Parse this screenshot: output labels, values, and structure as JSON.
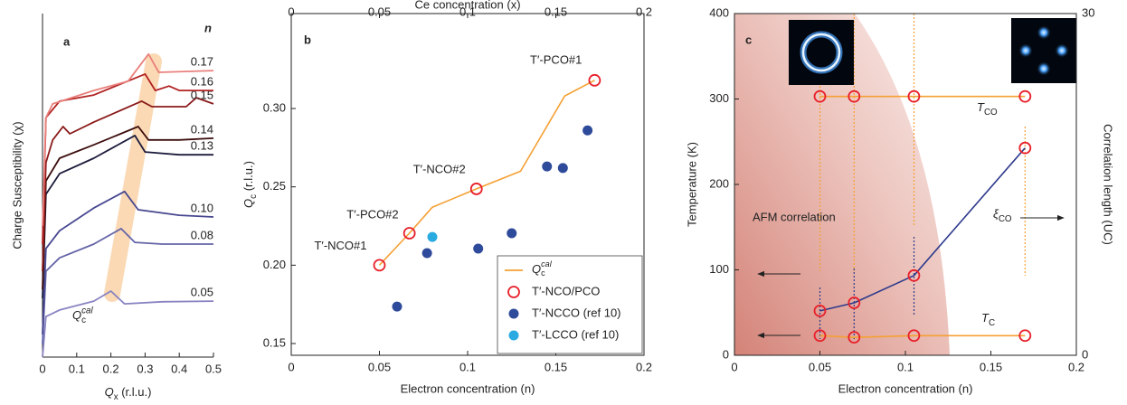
{
  "chart_data": [
    {
      "type": "line",
      "panel_label": "a",
      "xlabel": {
        "text": "Q",
        "sub": "x",
        "after": " (r.l.u.)"
      },
      "ylabel": "Charge Susceptibility (χ)",
      "legend_title": "n",
      "annotation": {
        "text": "Q",
        "sub": "c",
        "sup": "cal"
      },
      "xlim": [
        0,
        0.5
      ],
      "xticks": [
        0,
        0.1,
        0.2,
        0.3,
        0.4,
        0.5
      ],
      "ylim": [
        0,
        10
      ],
      "series": [
        {
          "name": "0.05",
          "color": "#8884c2",
          "x": [
            0,
            0.01,
            0.05,
            0.15,
            0.2,
            0.24,
            0.35,
            0.5
          ],
          "values": [
            0,
            1.18,
            1.37,
            1.63,
            1.92,
            1.55,
            1.61,
            1.63
          ]
        },
        {
          "name": "0.08",
          "color": "#6464a8",
          "x": [
            0,
            0.01,
            0.05,
            0.15,
            0.23,
            0.27,
            0.35,
            0.5
          ],
          "values": [
            0.39,
            2.5,
            2.89,
            3.29,
            3.74,
            3.34,
            3.29,
            3.29
          ]
        },
        {
          "name": "0.10",
          "color": "#474790",
          "x": [
            0,
            0.01,
            0.05,
            0.15,
            0.24,
            0.28,
            0.4,
            0.5
          ],
          "values": [
            0.66,
            3.16,
            3.68,
            4.34,
            4.82,
            4.29,
            4.13,
            4.08
          ]
        },
        {
          "name": "0.13",
          "color": "#1c1c3c",
          "x": [
            0,
            0.01,
            0.05,
            0.15,
            0.27,
            0.3,
            0.4,
            0.5
          ],
          "values": [
            1.71,
            4.74,
            5.34,
            5.79,
            6.45,
            5.97,
            5.89,
            5.89
          ]
        },
        {
          "name": "0.14",
          "color": "#3d0d0d",
          "x": [
            0,
            0.01,
            0.05,
            0.15,
            0.28,
            0.31,
            0.4,
            0.5
          ],
          "values": [
            1.97,
            5.13,
            5.79,
            6.18,
            6.71,
            6.32,
            6.32,
            6.37
          ]
        },
        {
          "name": "0.15",
          "color": "#8b1a1a",
          "x": [
            0,
            0.01,
            0.03,
            0.06,
            0.08,
            0.15,
            0.29,
            0.32,
            0.42,
            0.45,
            0.5
          ],
          "values": [
            2.5,
            5.66,
            6.32,
            6.71,
            6.5,
            6.84,
            7.45,
            7.29,
            7.29,
            7.55,
            7.37
          ]
        },
        {
          "name": "0.16",
          "color": "#b22222",
          "x": [
            0,
            0.01,
            0.05,
            0.15,
            0.3,
            0.33,
            0.37,
            0.4,
            0.5
          ],
          "values": [
            3.29,
            6.97,
            7.45,
            7.63,
            8.24,
            7.76,
            7.89,
            7.76,
            7.76
          ]
        },
        {
          "name": "0.17",
          "color": "#e9807c",
          "x": [
            0,
            0.01,
            0.03,
            0.15,
            0.25,
            0.31,
            0.34,
            0.5
          ],
          "values": [
            3.82,
            6.97,
            7.37,
            7.76,
            8.03,
            8.82,
            8.29,
            8.34
          ]
        }
      ]
    },
    {
      "type": "scatter",
      "panel_label": "b",
      "xlabel": "Electron concentration (n)",
      "x2label": "Ce concentration (x)",
      "ylabel": {
        "text": "Q",
        "sub": "c",
        "after": " (r.l.u.)"
      },
      "xlim": [
        0,
        0.2
      ],
      "xticks": [
        0,
        0.05,
        0.1,
        0.15,
        0.2
      ],
      "x2lim": [
        0,
        0.2
      ],
      "x2ticks": [
        0,
        0.05,
        0.1,
        0.15,
        0.2
      ],
      "ylim": [
        0.1425,
        0.3606
      ],
      "yticks": [
        {
          "value": 0.15,
          "label": "0.15"
        },
        {
          "value": 0.2,
          "label": "0.20"
        },
        {
          "value": 0.25,
          "label": "0.25"
        },
        {
          "value": 0.3,
          "label": "0.30"
        }
      ],
      "legend": "lower right",
      "series": [
        {
          "name": {
            "text": "Q",
            "sub": "c",
            "sup": "cal"
          },
          "color": "#f5a033",
          "marker": "none",
          "line": true,
          "x": [
            0.05,
            0.067,
            0.08,
            0.105,
            0.13,
            0.155,
            0.172
          ],
          "values": [
            0.2,
            0.2204,
            0.237,
            0.2487,
            0.26,
            0.308,
            0.318
          ]
        },
        {
          "name": "T′-NCO/PCO",
          "color": "#e8202a",
          "marker": "open",
          "line": false,
          "x": [
            0.05,
            0.067,
            0.105,
            0.172
          ],
          "values": [
            0.2,
            0.2204,
            0.2487,
            0.318
          ],
          "point_labels": [
            "T′-NCO#1",
            "T′-PCO#2",
            "T′-NCO#2",
            "T′-PCO#1"
          ]
        },
        {
          "name": "T′-NCCO (ref 10)",
          "color": "#2e4a9a",
          "marker": "filled",
          "line": false,
          "x": [
            0.06,
            0.077,
            0.106,
            0.125,
            0.145,
            0.154,
            0.168
          ],
          "values": [
            0.1736,
            0.2077,
            0.2106,
            0.2204,
            0.263,
            0.262,
            0.286
          ]
        },
        {
          "name": "T′-LCCO (ref 10)",
          "color": "#29abe2",
          "marker": "filled",
          "line": false,
          "x": [
            0.08
          ],
          "values": [
            0.218
          ]
        }
      ]
    },
    {
      "type": "line",
      "panel_label": "c",
      "xlabel": "Electron concentration (n)",
      "ylabel": "Temperature (K)",
      "y2label": "Correlation length (UC)",
      "region_label": "AFM correlation",
      "xlim": [
        0,
        0.2
      ],
      "xticks": [
        0,
        0.05,
        0.1,
        0.15,
        0.2
      ],
      "ylim": [
        0,
        400
      ],
      "yticks": [
        0,
        100,
        200,
        300,
        400
      ],
      "y2lim": [
        0,
        30
      ],
      "y2ticks": [
        0,
        30
      ],
      "series": [
        {
          "name": {
            "text": "T",
            "sub": "CO"
          },
          "color": "#f5a033",
          "marker": "open",
          "marker_color": "#e8202a",
          "line": true,
          "x": [
            0.05,
            0.07,
            0.105,
            0.17
          ],
          "values": [
            303,
            303,
            303,
            303
          ]
        },
        {
          "name": {
            "text": "T",
            "sub": "C"
          },
          "color": "#f5a033",
          "marker": "open",
          "marker_color": "#e8202a",
          "line": true,
          "x": [
            0.05,
            0.07,
            0.105,
            0.17
          ],
          "values": [
            23,
            21,
            23,
            23
          ]
        },
        {
          "name": {
            "text": "ξ",
            "sub": "CO"
          },
          "color": "#2e3a8c",
          "marker": "open",
          "marker_color": "#e8202a",
          "line": true,
          "axis": "y2",
          "x": [
            0.05,
            0.07,
            0.105,
            0.17
          ],
          "values": [
            3.9,
            4.6,
            7.0,
            18.2
          ]
        }
      ]
    }
  ]
}
